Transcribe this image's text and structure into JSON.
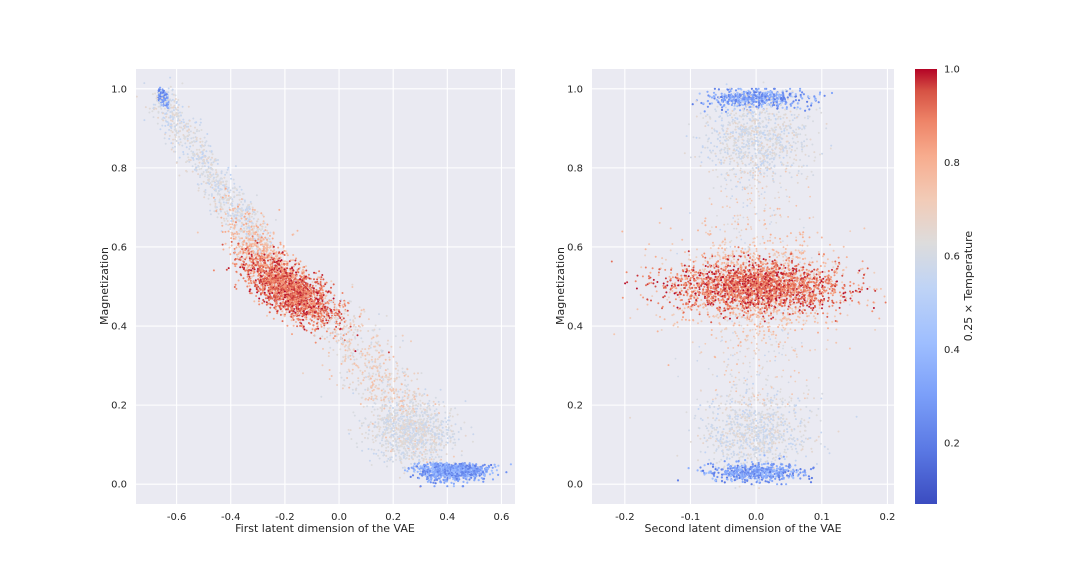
{
  "chart_data": [
    {
      "type": "scatter",
      "xlabel": "First latent dimension of the VAE",
      "ylabel": "Magnetization",
      "xlim": [
        -0.75,
        0.65
      ],
      "ylim": [
        -0.05,
        1.05
      ],
      "xticks": [
        "-0.6",
        "-0.4",
        "-0.2",
        "0.0",
        "0.2",
        "0.4",
        "0.6"
      ],
      "yticks": [
        "0.0",
        "0.2",
        "0.4",
        "0.6",
        "0.8",
        "1.0"
      ],
      "grid": true,
      "description_of_clusters": [
        {
          "x_center": -0.67,
          "y_center": 0.99,
          "color_value": 0.15
        },
        {
          "x_center": -0.52,
          "y_center": 0.85,
          "color_value": 0.58
        },
        {
          "x_center": -0.18,
          "y_center": 0.49,
          "color_value": 0.95
        },
        {
          "x_center": 0.25,
          "y_center": 0.15,
          "color_value": 0.58
        },
        {
          "x_center": 0.42,
          "y_center": 0.02,
          "color_value": 0.2
        }
      ]
    },
    {
      "type": "scatter",
      "xlabel": "Second latent dimension of the VAE",
      "ylabel": "Magnetization",
      "xlim": [
        -0.25,
        0.21
      ],
      "ylim": [
        -0.05,
        1.05
      ],
      "xticks": [
        "-0.2",
        "-0.1",
        "0.0",
        "0.1",
        "0.2"
      ],
      "yticks": [
        "0.0",
        "0.2",
        "0.4",
        "0.6",
        "0.8",
        "1.0"
      ],
      "grid": true,
      "description_of_clusters": [
        {
          "x_center": 0.0,
          "y_center": 0.98,
          "color_value": 0.2
        },
        {
          "x_center": 0.0,
          "y_center": 0.87,
          "color_value": 0.58
        },
        {
          "x_center": 0.0,
          "y_center": 0.5,
          "color_value": 0.95
        },
        {
          "x_center": 0.0,
          "y_center": 0.12,
          "color_value": 0.58
        },
        {
          "x_center": 0.0,
          "y_center": 0.03,
          "color_value": 0.2
        }
      ]
    }
  ],
  "colorbar": {
    "label": "0.25 × Temperature",
    "range": [
      0.07,
      1.0
    ],
    "ticks": [
      "0.2",
      "0.4",
      "0.6",
      "0.8",
      "1.0"
    ],
    "colormap": "coolwarm",
    "low_color": "#3b4cc0",
    "mid_color": "#dddcdc",
    "high_color": "#b40426"
  },
  "colors": {
    "axes_background": "#eaeaf2",
    "grid": "#ffffff"
  }
}
